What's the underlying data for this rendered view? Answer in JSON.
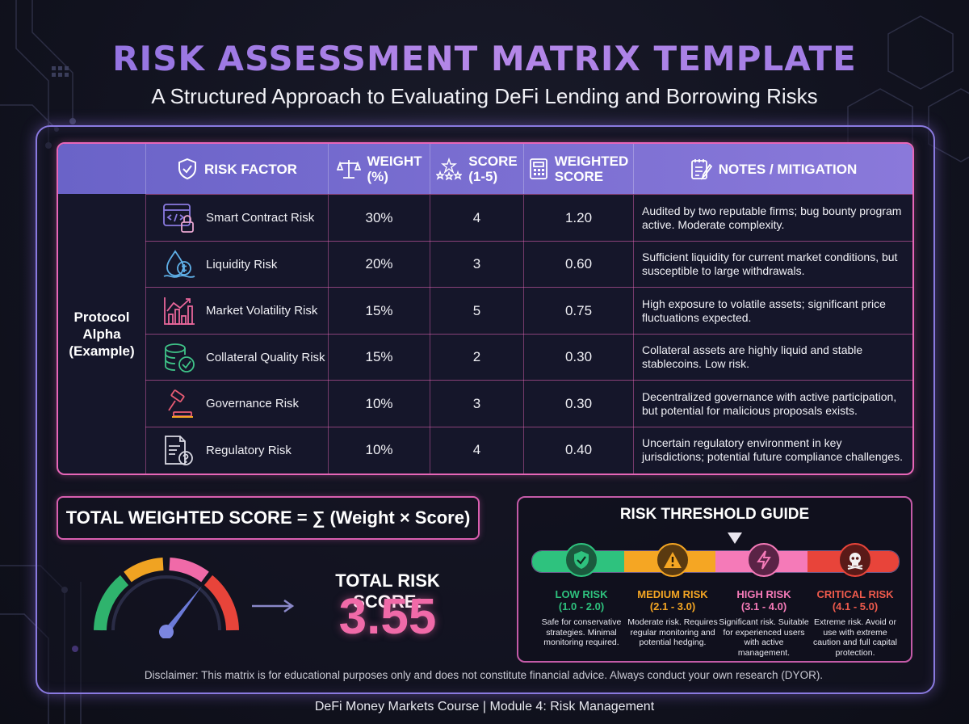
{
  "header": {
    "title": "RISK ASSESSMENT MATRIX TEMPLATE",
    "subtitle": "A Structured Approach to Evaluating DeFi Lending and Borrowing Risks"
  },
  "table": {
    "columns": {
      "risk_factor": "RISK FACTOR",
      "weight_1": "WEIGHT",
      "weight_2": "(%)",
      "score_1": "SCORE",
      "score_2": "(1-5)",
      "weighted_1": "WEIGHTED",
      "weighted_2": "SCORE",
      "notes": "NOTES / MITIGATION"
    },
    "protocol_label": "Protocol Alpha (Example)",
    "rows": [
      {
        "icon": "smart-contract-lock-icon",
        "factor": "Smart Contract Risk",
        "weight": "30%",
        "score": "4",
        "weighted": "1.20",
        "notes": "Audited by two reputable firms; bug bounty program active. Moderate complexity."
      },
      {
        "icon": "liquidity-drop-icon",
        "factor": "Liquidity Risk",
        "weight": "20%",
        "score": "3",
        "weighted": "0.60",
        "notes": "Sufficient liquidity for current market conditions, but susceptible to large withdrawals."
      },
      {
        "icon": "volatility-chart-icon",
        "factor": "Market Volatility Risk",
        "weight": "15%",
        "score": "5",
        "weighted": "0.75",
        "notes": "High exposure to volatile assets; significant price fluctuations expected."
      },
      {
        "icon": "collateral-coins-icon",
        "factor": "Collateral Quality Risk",
        "weight": "15%",
        "score": "2",
        "weighted": "0.30",
        "notes": "Collateral assets are highly liquid and stable stablecoins. Low risk."
      },
      {
        "icon": "governance-gavel-icon",
        "factor": "Governance Risk",
        "weight": "10%",
        "score": "3",
        "weighted": "0.30",
        "notes": "Decentralized governance with active participation, but potential for malicious proposals exists."
      },
      {
        "icon": "regulatory-document-icon",
        "factor": "Regulatory Risk",
        "weight": "10%",
        "score": "4",
        "weighted": "0.40",
        "notes": "Uncertain regulatory environment in key jurisdictions; potential future compliance challenges."
      }
    ]
  },
  "summary": {
    "formula": "TOTAL WEIGHTED SCORE = ∑ (Weight × Score)",
    "total_label": "TOTAL RISK SCORE:",
    "total_value": "3.55",
    "gauge_level_fraction": 0.71
  },
  "threshold": {
    "title": "RISK THRESHOLD GUIDE",
    "marker_position_score": 3.55,
    "tiers": [
      {
        "name": "LOW RISK",
        "range": "(1.0 - 2.0)",
        "desc": "Safe for conservative strategies. Minimal monitoring required.",
        "color": "#2ec27e",
        "icon": "shield-check-icon"
      },
      {
        "name": "MEDIUM RISK",
        "range": "(2.1 - 3.0)",
        "desc": "Moderate risk. Requires regular monitoring and potential hedging.",
        "color": "#f5a623",
        "icon": "warning-icon"
      },
      {
        "name": "HIGH RISK",
        "range": "(3.1 - 4.0)",
        "desc": "Significant risk. Suitable for experienced users with active management.",
        "color": "#f06aa8",
        "icon": "lightning-icon"
      },
      {
        "name": "CRITICAL RISK",
        "range": "(4.1 - 5.0)",
        "desc": "Extreme risk. Avoid or use with extreme caution and full capital protection.",
        "color": "#e8443a",
        "icon": "skull-icon"
      }
    ]
  },
  "disclaimer": "Disclaimer: This matrix is for educational purposes only and does not constitute financial advice. Always conduct your own research (DYOR).",
  "footer": "DeFi Money Markets Course | Module 4: Risk Management",
  "colors": {
    "accent_purple": "#8a79da",
    "accent_pink": "#e866b8",
    "score_pink": "#f06aa8"
  }
}
